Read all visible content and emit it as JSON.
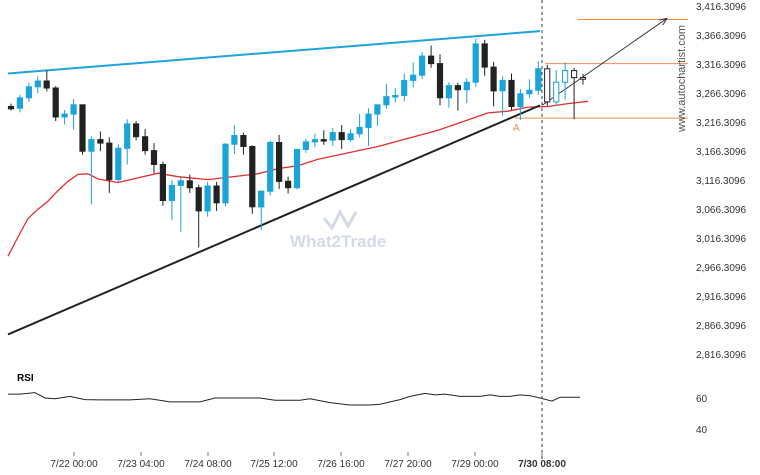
{
  "chart_data": {
    "type": "candlestick",
    "y_ticks": [
      "3,416.3096",
      "3,366.3096",
      "3,316.3096",
      "3,266.3096",
      "3,216.3096",
      "3,166.3096",
      "3,116.3096",
      "3,066.3096",
      "3,016.3096",
      "2,966.3096",
      "2,916.3096",
      "2,866.3096",
      "2,816.3096"
    ],
    "x_ticks": [
      "7/22 00:00",
      "7/23 04:00",
      "7/24 08:00",
      "7/25 12:00",
      "7/26 16:00",
      "7/27 20:00",
      "7/29 00:00",
      "7/30 08:00"
    ],
    "ylim": [
      2806,
      3420
    ],
    "candles": [
      [
        3243,
        3248,
        3236,
        3239
      ],
      [
        3240,
        3263,
        3233,
        3258
      ],
      [
        3258,
        3284,
        3251,
        3277
      ],
      [
        3277,
        3295,
        3266,
        3287
      ],
      [
        3287,
        3305,
        3269,
        3275
      ],
      [
        3275,
        3278,
        3218,
        3225
      ],
      [
        3225,
        3237,
        3212,
        3230
      ],
      [
        3230,
        3256,
        3203,
        3246
      ],
      [
        3246,
        3246,
        3160,
        3166
      ],
      [
        3166,
        3192,
        3074,
        3186
      ],
      [
        3186,
        3200,
        3166,
        3180
      ],
      [
        3180,
        3190,
        3094,
        3117
      ],
      [
        3117,
        3178,
        3112,
        3171
      ],
      [
        3171,
        3221,
        3143,
        3213
      ],
      [
        3213,
        3218,
        3185,
        3191
      ],
      [
        3191,
        3204,
        3160,
        3167
      ],
      [
        3167,
        3180,
        3128,
        3143
      ],
      [
        3143,
        3148,
        3072,
        3081
      ],
      [
        3081,
        3116,
        3047,
        3107
      ],
      [
        3107,
        3121,
        3027,
        3115
      ],
      [
        3115,
        3126,
        3094,
        3103
      ],
      [
        3103,
        3108,
        3000,
        3063
      ],
      [
        3063,
        3113,
        3053,
        3106
      ],
      [
        3106,
        3113,
        3063,
        3077
      ],
      [
        3077,
        3180,
        3071,
        3178
      ],
      [
        3178,
        3211,
        3161,
        3193
      ],
      [
        3193,
        3198,
        3160,
        3174
      ],
      [
        3174,
        3176,
        3058,
        3070
      ],
      [
        3070,
        3098,
        3030,
        3097
      ],
      [
        3097,
        3184,
        3090,
        3181
      ],
      [
        3181,
        3194,
        3101,
        3114
      ],
      [
        3114,
        3122,
        3093,
        3103
      ],
      [
        3103,
        3170,
        3100,
        3169
      ],
      [
        3169,
        3187,
        3163,
        3182
      ],
      [
        3182,
        3196,
        3173,
        3186
      ],
      [
        3186,
        3202,
        3177,
        3185
      ],
      [
        3185,
        3206,
        3175,
        3198
      ],
      [
        3198,
        3211,
        3170,
        3186
      ],
      [
        3186,
        3204,
        3182,
        3196
      ],
      [
        3196,
        3230,
        3190,
        3207
      ],
      [
        3207,
        3240,
        3175,
        3230
      ],
      [
        3230,
        3243,
        3210,
        3246
      ],
      [
        3246,
        3282,
        3239,
        3260
      ],
      [
        3260,
        3275,
        3250,
        3262
      ],
      [
        3262,
        3300,
        3252,
        3288
      ],
      [
        3288,
        3319,
        3276,
        3297
      ],
      [
        3297,
        3337,
        3290,
        3330
      ],
      [
        3330,
        3348,
        3310,
        3317
      ],
      [
        3317,
        3333,
        3245,
        3258
      ],
      [
        3258,
        3285,
        3241,
        3279
      ],
      [
        3279,
        3284,
        3236,
        3272
      ],
      [
        3272,
        3292,
        3249,
        3285
      ],
      [
        3285,
        3360,
        3277,
        3351
      ],
      [
        3351,
        3358,
        3296,
        3311
      ],
      [
        3311,
        3320,
        3243,
        3270
      ],
      [
        3270,
        3295,
        3227,
        3288
      ],
      [
        3288,
        3300,
        3237,
        3243
      ],
      [
        3243,
        3273,
        3220,
        3265
      ],
      [
        3265,
        3290,
        3258,
        3271
      ],
      [
        3271,
        3321,
        3263,
        3308
      ],
      [
        3308,
        3315,
        3244,
        3251
      ],
      [
        3251,
        3306,
        3244,
        3285
      ],
      [
        3285,
        3319,
        3255,
        3305
      ],
      [
        3305,
        3310,
        3221,
        3293
      ],
      [
        3293,
        3299,
        3281,
        3290
      ]
    ],
    "ma": [
      [
        0,
        2985
      ],
      [
        10,
        3018
      ],
      [
        20,
        3050
      ],
      [
        30,
        3066
      ],
      [
        40,
        3080
      ],
      [
        50,
        3098
      ],
      [
        60,
        3114
      ],
      [
        70,
        3126
      ],
      [
        80,
        3127
      ],
      [
        90,
        3118
      ],
      [
        110,
        3112
      ],
      [
        130,
        3120
      ],
      [
        150,
        3128
      ],
      [
        170,
        3122
      ],
      [
        200,
        3117
      ],
      [
        230,
        3123
      ],
      [
        250,
        3127
      ],
      [
        270,
        3136
      ],
      [
        290,
        3141
      ],
      [
        310,
        3152
      ],
      [
        340,
        3163
      ],
      [
        370,
        3174
      ],
      [
        400,
        3188
      ],
      [
        430,
        3202
      ],
      [
        460,
        3220
      ],
      [
        480,
        3232
      ],
      [
        500,
        3235
      ],
      [
        520,
        3242
      ],
      [
        540,
        3243
      ],
      [
        560,
        3248
      ],
      [
        580,
        3252
      ]
    ],
    "resistance_line": {
      "x1": 8,
      "y1": 3300,
      "x2": 540,
      "y2": 3373
    },
    "support_line": {
      "x1": 8,
      "y1": 2850,
      "x2": 540,
      "y2": 3245
    },
    "projection_arrow": {
      "x1": 542,
      "y1": 3245,
      "x2": 667,
      "y2": 3395
    },
    "target_level": 3393,
    "upper_level": 3317,
    "lower_level": 3223,
    "pattern_label": "A",
    "rsi_label": "RSI",
    "rsi_ticks": [
      "60",
      "40"
    ],
    "rsi_values": [
      [
        8,
        62.5
      ],
      [
        20,
        62.5
      ],
      [
        35,
        63.5
      ],
      [
        45,
        60
      ],
      [
        55,
        59.5
      ],
      [
        70,
        61
      ],
      [
        85,
        59
      ],
      [
        100,
        58.8
      ],
      [
        130,
        58.8
      ],
      [
        150,
        59.5
      ],
      [
        170,
        57.5
      ],
      [
        200,
        57.5
      ],
      [
        215,
        60
      ],
      [
        225,
        60
      ],
      [
        260,
        60
      ],
      [
        275,
        58.5
      ],
      [
        300,
        58.5
      ],
      [
        310,
        59.5
      ],
      [
        330,
        57
      ],
      [
        350,
        55.5
      ],
      [
        370,
        55.5
      ],
      [
        380,
        56
      ],
      [
        400,
        59
      ],
      [
        410,
        61
      ],
      [
        425,
        63
      ],
      [
        435,
        62
      ],
      [
        445,
        62.5
      ],
      [
        460,
        61
      ],
      [
        470,
        61
      ],
      [
        480,
        61
      ],
      [
        490,
        62
      ],
      [
        500,
        61
      ],
      [
        510,
        61
      ],
      [
        520,
        62
      ],
      [
        530,
        61.5
      ],
      [
        540,
        60
      ],
      [
        552,
        58
      ],
      [
        560,
        60.5
      ],
      [
        580,
        60.5
      ]
    ],
    "watermark": "What2Trade",
    "source": "www.autochartist.com"
  }
}
